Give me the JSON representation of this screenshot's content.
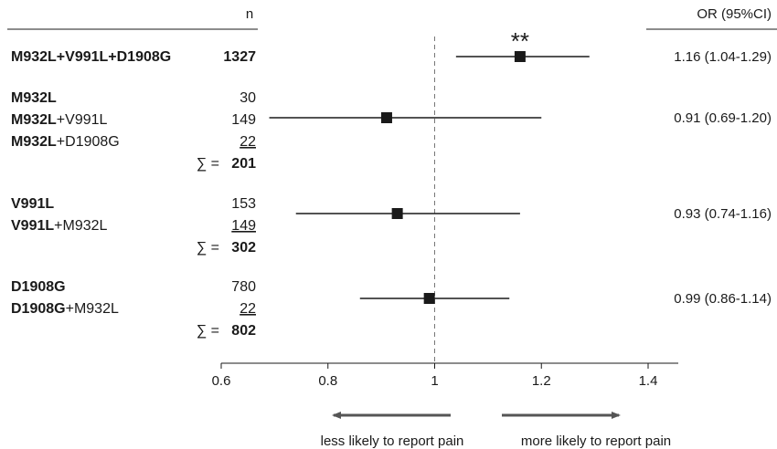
{
  "chart_data": {
    "type": "forest",
    "header_n": "n",
    "header_or": "OR (95%CI)",
    "x_ticks": [
      "0.6",
      "0.8",
      "1",
      "1.2",
      "1.4"
    ],
    "x_tick_values": [
      0.6,
      0.8,
      1.0,
      1.2,
      1.4
    ],
    "xlim": [
      0.6,
      1.44
    ],
    "reference_line": 1,
    "rows": [
      {
        "parts": [
          {
            "t": "M932L+V991L+D1908G",
            "b": true
          }
        ],
        "n": "1327",
        "n_bold": true
      },
      {
        "parts": [
          {
            "t": "M932L",
            "b": true
          }
        ],
        "n": "30"
      },
      {
        "parts": [
          {
            "t": "M932L",
            "b": true
          },
          {
            "t": "+V991L",
            "b": false
          }
        ],
        "n": "149"
      },
      {
        "parts": [
          {
            "t": "M932L",
            "b": true
          },
          {
            "t": "+D1908G",
            "b": false
          }
        ],
        "n": "22",
        "n_underline": true
      },
      {
        "parts": [],
        "n": "201",
        "sum": true
      },
      {
        "parts": [
          {
            "t": "V991L",
            "b": true
          }
        ],
        "n": "153"
      },
      {
        "parts": [
          {
            "t": "V991L",
            "b": true
          },
          {
            "t": "+M932L",
            "b": false
          }
        ],
        "n": "149",
        "n_underline": true
      },
      {
        "parts": [],
        "n": "302",
        "sum": true
      },
      {
        "parts": [
          {
            "t": "D1908G",
            "b": true
          }
        ],
        "n": "780"
      },
      {
        "parts": [
          {
            "t": "D1908G",
            "b": true
          },
          {
            "t": "+M932L",
            "b": false
          }
        ],
        "n": "22",
        "n_underline": true
      },
      {
        "parts": [],
        "n": "802",
        "sum": true
      }
    ],
    "sum_symbol": "∑ =",
    "estimates": [
      {
        "or": 1.16,
        "lo": 1.04,
        "hi": 1.29,
        "label": "1.16 (1.04-1.29)",
        "annotation": "**"
      },
      {
        "or": 0.91,
        "lo": 0.69,
        "hi": 1.2,
        "label": "0.91 (0.69-1.20)"
      },
      {
        "or": 0.93,
        "lo": 0.74,
        "hi": 1.16,
        "label": "0.93 (0.74-1.16)"
      },
      {
        "or": 0.99,
        "lo": 0.86,
        "hi": 1.14,
        "label": "0.99 (0.86-1.14)"
      }
    ],
    "arrow_left_label": "less likely to report pain",
    "arrow_right_label": "more likely to report pain",
    "colors": {
      "ink": "#1a1a1a",
      "arrow": "#555555",
      "refline": "#777777"
    }
  }
}
